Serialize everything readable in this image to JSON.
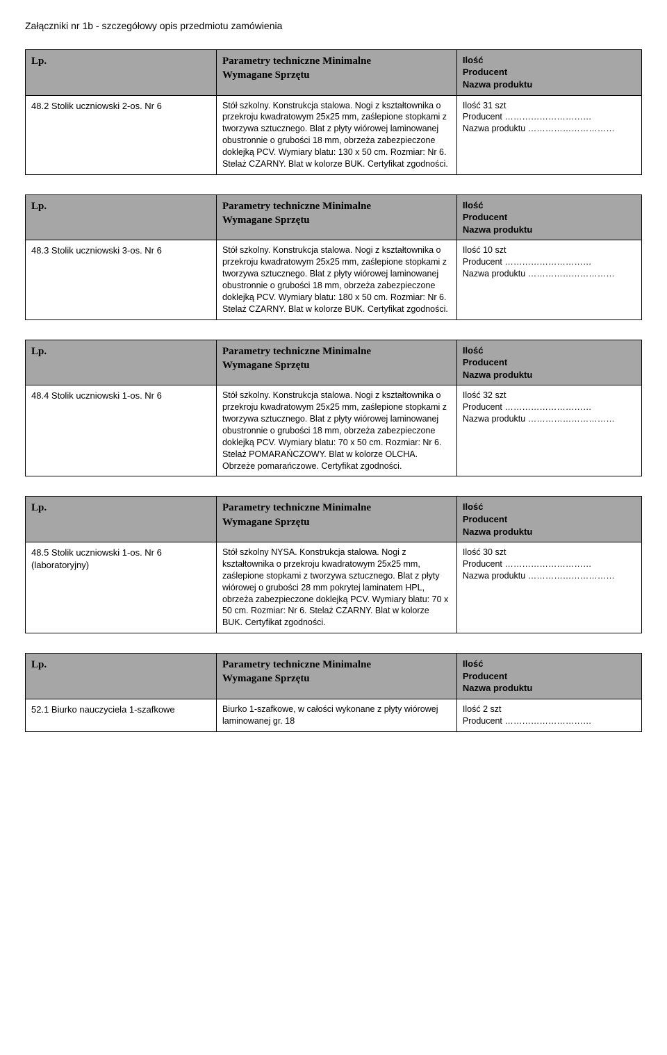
{
  "pageTitle": "Załączniki nr 1b - szczegółowy opis przedmiotu zamówienia",
  "header": {
    "col1": "Lp.",
    "col2Line1": "Parametry techniczne Minimalne",
    "col2Line2": "Wymagane Sprzętu",
    "col3Line1": "Ilość",
    "col3Line2": "Producent",
    "col3Line3": "Nazwa produktu"
  },
  "fill": {
    "producentLabel": "Producent …………………………",
    "nazwaLabel": "Nazwa produktu …………………………"
  },
  "tables": [
    {
      "itemLabel": "48.2 Stolik uczniowski 2-os. Nr 6",
      "description": "Stół szkolny. Konstrukcja stalowa.  Nogi z kształtownika o przekroju kwadratowym 25x25 mm, zaślepione stopkami z tworzywa sztucznego. Blat z płyty wiórowej laminowanej obustronnie o grubości 18 mm, obrzeża zabezpieczone doklejką PCV. Wymiary blatu: 130 x 50 cm. Rozmiar: Nr 6.  Stelaż CZARNY. Blat w kolorze BUK. Certyfikat zgodności.",
      "qtyLine": "Ilość  31 szt"
    },
    {
      "itemLabel": "48.3 Stolik uczniowski 3-os. Nr 6",
      "description": "Stół szkolny. Konstrukcja stalowa.  Nogi z kształtownika o przekroju kwadratowym 25x25 mm, zaślepione stopkami z tworzywa sztucznego. Blat z płyty wiórowej laminowanej obustronnie o grubości 18 mm, obrzeża zabezpieczone doklejką PCV. Wymiary blatu: 180 x 50 cm. Rozmiar: Nr 6.  Stelaż CZARNY. Blat w kolorze BUK. Certyfikat zgodności.",
      "qtyLine": "Ilość  10 szt"
    },
    {
      "itemLabel": "48.4 Stolik uczniowski 1-os. Nr 6",
      "description": "Stół szkolny. Konstrukcja stalowa.  Nogi z kształtownika o przekroju kwadratowym 25x25 mm, zaślepione stopkami z tworzywa sztucznego. Blat z płyty wiórowej laminowanej obustronnie o grubości 18 mm, obrzeża zabezpieczone doklejką PCV. Wymiary blatu: 70 x 50 cm. Rozmiar: Nr 6.  Stelaż POMARAŃCZOWY. Blat w kolorze OLCHA. Obrzeże pomarańczowe. Certyfikat zgodności.",
      "qtyLine": "Ilość  32 szt"
    },
    {
      "itemLabel": "48.5 Stolik uczniowski 1-os. Nr 6 (laboratoryjny)",
      "description": "Stół szkolny NYSA. Konstrukcja stalowa.  Nogi  z kształtownika o przekroju kwadratowym 25x25 mm, zaślepione stopkami z tworzywa sztucznego. Blat z płyty wiórowej o grubości 28 mm pokrytej laminatem HPL, obrzeża zabezpieczone doklejką PCV. Wymiary blatu: 70 x 50 cm. Rozmiar: Nr 6.  Stelaż CZARNY. Blat w kolorze BUK. Certyfikat zgodności.",
      "qtyLine": "Ilość  30 szt"
    },
    {
      "itemLabel": "52.1 Biurko nauczyciela  1-szafkowe",
      "description": "Biurko 1-szafkowe, w całości wykonane z płyty wiórowej laminowanej gr. 18",
      "qtyLine": "Ilość  2 szt",
      "omitNazwa": true
    }
  ]
}
